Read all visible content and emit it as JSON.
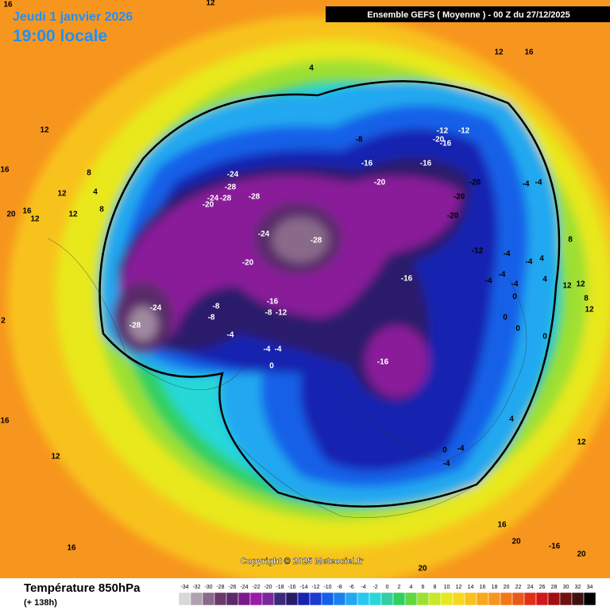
{
  "header": {
    "date": "Jeudi 1 janvier 2026",
    "time": "19:00 locale",
    "model": "Ensemble GEFS  ( Moyenne )  -  00 Z du 27/12/2025"
  },
  "map": {
    "copyright": "Copyright © 2025 Meteociel.fr",
    "contour_labels": [
      "16",
      "12",
      "4",
      "12",
      "16",
      "12",
      "16",
      "20",
      "16",
      "12",
      "8",
      "12",
      "4",
      "8",
      "12",
      "-8",
      "-12",
      "-12",
      "-20",
      "-16",
      "-16",
      "-16",
      "-24",
      "-28",
      "-20",
      "-20",
      "-4",
      "-4",
      "-24",
      "-28",
      "-28",
      "-20",
      "-20",
      "-20",
      "-24",
      "-28",
      "8",
      "-12",
      "-4",
      "-4",
      "4",
      "-20",
      "-16",
      "-4",
      "-4",
      "-4",
      "4",
      "12",
      "12",
      "0",
      "8",
      "-24",
      "-8",
      "-16",
      "-8",
      "-8",
      "-12",
      "12",
      "0",
      "-28",
      "0",
      "-4",
      "0",
      "-4",
      "-4",
      "-16",
      "0",
      "4",
      "12",
      "0",
      "-4",
      "12",
      "-4",
      "16",
      "20",
      "16",
      "-16",
      "20",
      "20",
      "16",
      "2"
    ]
  },
  "footer": {
    "title": "Température 850hPa",
    "lead": "(+ 138h)",
    "scale": [
      -34,
      -32,
      -30,
      -28,
      -26,
      -24,
      -22,
      -20,
      -18,
      -16,
      -14,
      -12,
      -10,
      -8,
      -6,
      -4,
      -2,
      0,
      2,
      4,
      6,
      8,
      10,
      12,
      14,
      16,
      18,
      20,
      22,
      24,
      26,
      28,
      30,
      32,
      34
    ]
  }
}
